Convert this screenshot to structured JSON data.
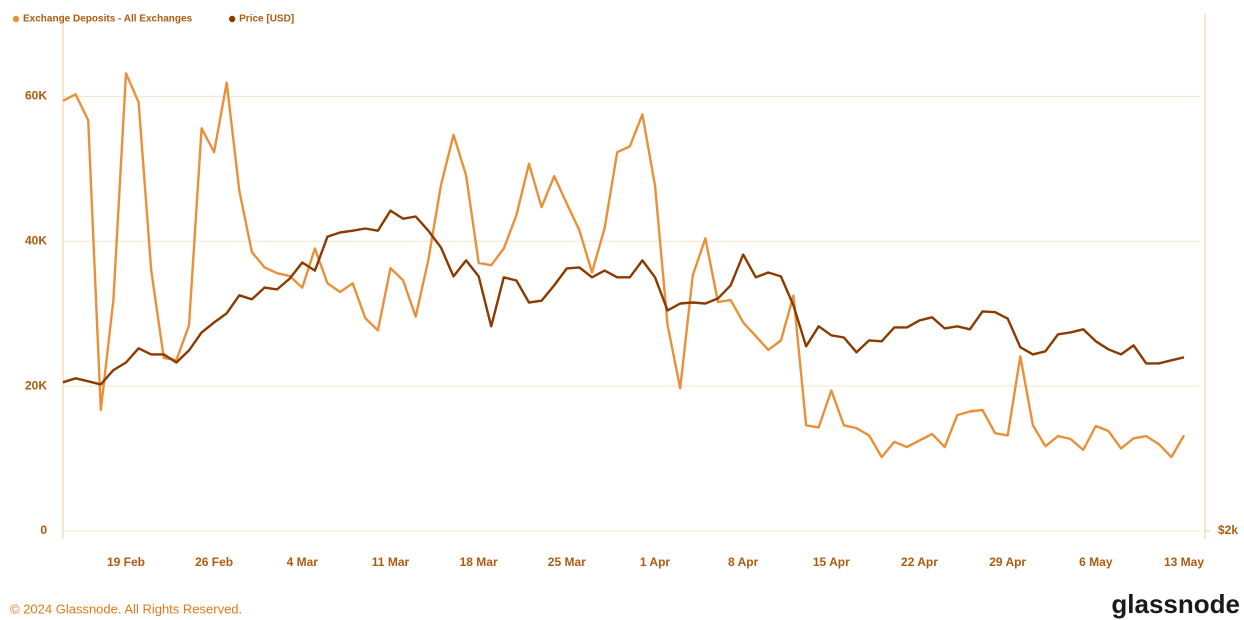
{
  "chart_data": {
    "type": "line",
    "categories": [
      null,
      null,
      null,
      null,
      null,
      "19 Feb",
      null,
      null,
      null,
      null,
      null,
      null,
      "26 Feb",
      null,
      null,
      null,
      null,
      null,
      null,
      "4 Mar",
      null,
      null,
      null,
      null,
      null,
      null,
      "11 Mar",
      null,
      null,
      null,
      null,
      null,
      null,
      "18 Mar",
      null,
      null,
      null,
      null,
      null,
      null,
      "25 Mar",
      null,
      null,
      null,
      null,
      null,
      null,
      "1 Apr",
      null,
      null,
      null,
      null,
      null,
      null,
      "8 Apr",
      null,
      null,
      null,
      null,
      null,
      null,
      "15 Apr",
      null,
      null,
      null,
      null,
      null,
      null,
      "22 Apr",
      null,
      null,
      null,
      null,
      null,
      null,
      "29 Apr",
      null,
      null,
      null,
      null,
      null,
      null,
      "6 May",
      null,
      null,
      null,
      null,
      null,
      null,
      "13 May"
    ],
    "series": [
      {
        "name": "Exchange Deposits - All Exchanges",
        "color": "#e8913a",
        "values": [
          59400,
          60300,
          56700,
          16700,
          31900,
          63200,
          59200,
          36000,
          23900,
          23600,
          28400,
          55600,
          52300,
          61900,
          47000,
          38500,
          36400,
          35600,
          35200,
          33600,
          39000,
          34200,
          33000,
          34200,
          29400,
          27700,
          36300,
          34600,
          29600,
          37400,
          47700,
          54700,
          49100,
          37000,
          36700,
          39000,
          43600,
          50700,
          44700,
          49000,
          45200,
          41500,
          35700,
          41800,
          52300,
          53100,
          57500,
          47700,
          28400,
          19700,
          35300,
          40400,
          31600,
          31900,
          28800,
          26900,
          25000,
          26300,
          32500,
          14600,
          14300,
          19400,
          14600,
          14200,
          13200,
          10200,
          12300,
          11600,
          12500,
          13400,
          11600,
          16000,
          16500,
          16700,
          13500,
          13200,
          24100,
          14600,
          11700,
          13100,
          12700,
          11200,
          14500,
          13800,
          11400,
          12800,
          13100,
          12000,
          10200,
          13200
        ]
      },
      {
        "name": "Price [USD]",
        "color": "#8b3a00",
        "axis": "y2",
        "values": [
          2787,
          2812,
          2793,
          2774,
          2864,
          2913,
          3007,
          2966,
          2966,
          2913,
          2993,
          3115,
          3185,
          3251,
          3384,
          3354,
          3443,
          3429,
          3513,
          3641,
          3576,
          3858,
          3893,
          3909,
          3928,
          3909,
          4088,
          4015,
          4035,
          3909,
          3766,
          3530,
          3658,
          3530,
          3158,
          3523,
          3498,
          3330,
          3344,
          3460,
          3594,
          3602,
          3523,
          3576,
          3523,
          3523,
          3658,
          3523,
          3272,
          3323,
          3330,
          3323,
          3361,
          3460,
          3706,
          3523,
          3561,
          3530,
          3308,
          3020,
          3158,
          3095,
          3080,
          2980,
          3060,
          3054,
          3150,
          3150,
          3200,
          3222,
          3143,
          3158,
          3137,
          3265,
          3259,
          3213,
          3014,
          2966,
          2987,
          3102,
          3115,
          3137,
          3054,
          3000,
          2966,
          3026,
          2907,
          2907,
          2927,
          2947
        ]
      }
    ],
    "ylim": [
      0,
      70000
    ],
    "yticks": [
      0,
      {
        "value": 20000,
        "label": "20K"
      },
      {
        "value": 40000,
        "label": "40K"
      },
      {
        "value": 60000,
        "label": "60K"
      }
    ],
    "y2lim": [
      2000,
      6200
    ],
    "y2scale": "log",
    "y2ticks": [
      {
        "value": 2000,
        "label": "$2k"
      }
    ],
    "grid": true,
    "legend": "top-left"
  },
  "footer": {
    "copyright": "© 2024 Glassnode. All Rights Reserved.",
    "brand": "glassnode"
  }
}
